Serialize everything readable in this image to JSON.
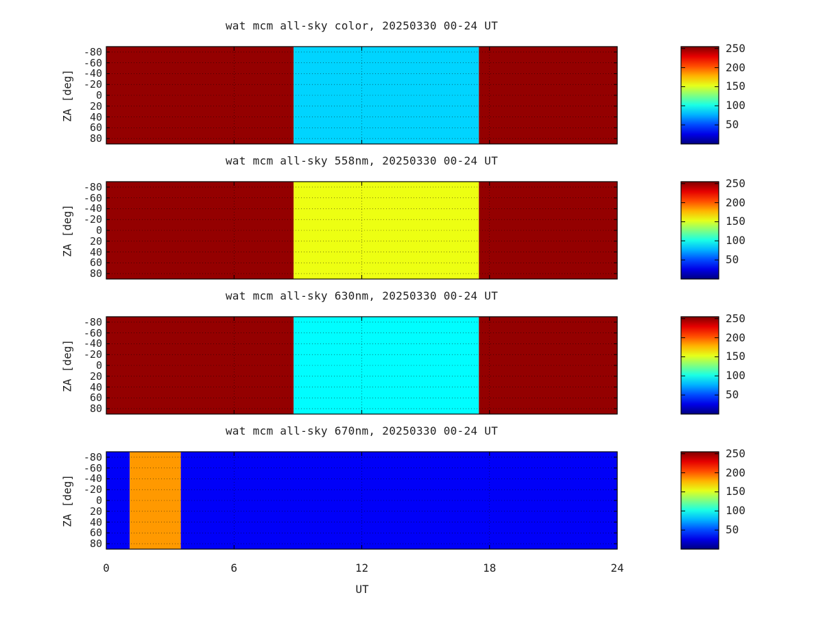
{
  "chart_data": [
    {
      "type": "heatmap",
      "title": "wat mcm all-sky color, 20250330 00-24 UT",
      "ylabel": "ZA [deg]",
      "xlim": [
        0,
        24
      ],
      "ylim": [
        -90,
        90
      ],
      "yticks": [
        "-80",
        "-60",
        "-40",
        "-20",
        "0",
        "20",
        "40",
        "60",
        "80"
      ],
      "colorbar": {
        "range": [
          0,
          255
        ],
        "ticks": [
          "50",
          "100",
          "150",
          "200",
          "250"
        ]
      },
      "regions": [
        {
          "ut_start": 0,
          "ut_end": 8.8,
          "value": 250
        },
        {
          "ut_start": 8.8,
          "ut_end": 17.5,
          "value": 85
        },
        {
          "ut_start": 17.5,
          "ut_end": 24,
          "value": 250
        }
      ]
    },
    {
      "type": "heatmap",
      "title": "wat mcm all-sky 558nm, 20250330 00-24 UT",
      "ylabel": "ZA [deg]",
      "xlim": [
        0,
        24
      ],
      "ylim": [
        -90,
        90
      ],
      "yticks": [
        "-80",
        "-60",
        "-40",
        "-20",
        "0",
        "20",
        "40",
        "60",
        "80"
      ],
      "colorbar": {
        "range": [
          0,
          255
        ],
        "ticks": [
          "50",
          "100",
          "150",
          "200",
          "250"
        ]
      },
      "regions": [
        {
          "ut_start": 0,
          "ut_end": 8.8,
          "value": 250
        },
        {
          "ut_start": 8.8,
          "ut_end": 17.5,
          "value": 155
        },
        {
          "ut_start": 17.5,
          "ut_end": 24,
          "value": 250
        }
      ]
    },
    {
      "type": "heatmap",
      "title": "wat mcm all-sky 630nm, 20250330 00-24 UT",
      "ylabel": "ZA [deg]",
      "xlim": [
        0,
        24
      ],
      "ylim": [
        -90,
        90
      ],
      "yticks": [
        "-80",
        "-60",
        "-40",
        "-20",
        "0",
        "20",
        "40",
        "60",
        "80"
      ],
      "colorbar": {
        "range": [
          0,
          255
        ],
        "ticks": [
          "50",
          "100",
          "150",
          "200",
          "250"
        ]
      },
      "regions": [
        {
          "ut_start": 0,
          "ut_end": 8.8,
          "value": 250
        },
        {
          "ut_start": 8.8,
          "ut_end": 17.5,
          "value": 95
        },
        {
          "ut_start": 17.5,
          "ut_end": 24,
          "value": 250
        }
      ]
    },
    {
      "type": "heatmap",
      "title": "wat mcm all-sky 670nm, 20250330 00-24 UT",
      "ylabel": "ZA [deg]",
      "xlim": [
        0,
        24
      ],
      "ylim": [
        -90,
        90
      ],
      "yticks": [
        "-80",
        "-60",
        "-40",
        "-20",
        "0",
        "20",
        "40",
        "60",
        "80"
      ],
      "colorbar": {
        "range": [
          0,
          255
        ],
        "ticks": [
          "50",
          "100",
          "150",
          "200",
          "250"
        ]
      },
      "regions": [
        {
          "ut_start": 0,
          "ut_end": 1.1,
          "value": 30
        },
        {
          "ut_start": 1.1,
          "ut_end": 3.5,
          "value": 185
        },
        {
          "ut_start": 3.5,
          "ut_end": 24,
          "value": 30
        }
      ]
    }
  ],
  "xaxis": {
    "label": "UT",
    "ticks": [
      "0",
      "6",
      "12",
      "18",
      "24"
    ],
    "tick_values": [
      0,
      6,
      12,
      18,
      24
    ]
  }
}
